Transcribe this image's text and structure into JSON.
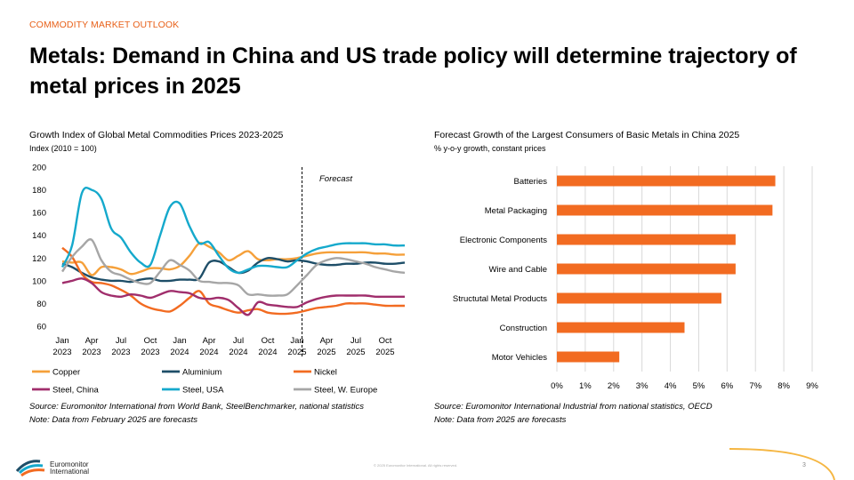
{
  "header": {
    "section_label": "COMMODITY MARKET OUTLOOK",
    "title": "Metals: Demand in China and US trade policy will determine trajectory of metal prices in 2025"
  },
  "left_chart": {
    "title": "Growth Index of Global Metal Commodities Prices 2023-2025",
    "subtitle": "Index (2010 = 100)",
    "forecast_label": "Forecast",
    "source": "Source: Euromonitor International from World Bank, SteelBenchmarker, national statistics",
    "note": "Note: Data from February 2025 are forecasts"
  },
  "right_chart": {
    "title": "Forecast Growth of the Largest Consumers of Basic Metals in China 2025",
    "subtitle": "% y-o-y growth, constant prices",
    "source": "Source: Euromonitor International Industrial from national statistics, OECD",
    "note": "Note: Data from 2025 are forecasts"
  },
  "footer": {
    "logo_line1": "Euromonitor",
    "logo_line2": "International",
    "copyright": "© 2025 Euromonitor International. All rights reserved.",
    "page_number": "3"
  },
  "chart_data": [
    {
      "type": "line",
      "x": [
        "Jan 2023",
        "Feb 2023",
        "Mar 2023",
        "Apr 2023",
        "May 2023",
        "Jun 2023",
        "Jul 2023",
        "Aug 2023",
        "Sep 2023",
        "Oct 2023",
        "Nov 2023",
        "Dec 2023",
        "Jan 2024",
        "Feb 2024",
        "Mar 2024",
        "Apr 2024",
        "May 2024",
        "Jun 2024",
        "Jul 2024",
        "Aug 2024",
        "Sep 2024",
        "Oct 2024",
        "Nov 2024",
        "Dec 2024",
        "Jan 2025",
        "Feb 2025",
        "Mar 2025",
        "Apr 2025",
        "May 2025",
        "Jun 2025",
        "Jul 2025",
        "Aug 2025",
        "Sep 2025",
        "Oct 2025",
        "Nov 2025",
        "Dec 2025"
      ],
      "x_tick_labels": [
        {
          "month": "Jan",
          "year": "2023",
          "index": 0
        },
        {
          "month": "Apr",
          "year": "2023",
          "index": 3
        },
        {
          "month": "Jul",
          "year": "2023",
          "index": 6
        },
        {
          "month": "Oct",
          "year": "2023",
          "index": 9
        },
        {
          "month": "Jan",
          "year": "2024",
          "index": 12
        },
        {
          "month": "Apr",
          "year": "2024",
          "index": 15
        },
        {
          "month": "Jul",
          "year": "2024",
          "index": 18
        },
        {
          "month": "Oct",
          "year": "2024",
          "index": 21
        },
        {
          "month": "Jan",
          "year": "2025",
          "index": 24
        },
        {
          "month": "Apr",
          "year": "2025",
          "index": 27
        },
        {
          "month": "Jul",
          "year": "2025",
          "index": 30
        },
        {
          "month": "Oct",
          "year": "2025",
          "index": 33
        }
      ],
      "y_ticks": [
        60,
        80,
        100,
        120,
        140,
        160,
        180,
        200
      ],
      "ylim": [
        60,
        200
      ],
      "forecast_start_index": 24.5,
      "series": [
        {
          "name": "Copper",
          "color": "#f5a03a",
          "values": [
            117,
            116,
            116,
            105,
            112,
            112,
            110,
            106,
            108,
            111,
            111,
            110,
            113,
            122,
            133,
            130,
            125,
            118,
            122,
            126,
            119,
            118,
            119,
            119,
            120,
            122,
            124,
            125,
            125,
            125,
            125,
            125,
            124,
            124,
            123,
            123
          ]
        },
        {
          "name": "Aluminium",
          "color": "#1e4e68",
          "values": [
            115,
            112,
            107,
            103,
            101,
            100,
            100,
            99,
            101,
            102,
            100,
            100,
            101,
            101,
            102,
            116,
            117,
            112,
            107,
            109,
            116,
            120,
            119,
            117,
            118,
            117,
            115,
            114,
            114,
            115,
            115,
            116,
            116,
            115,
            115,
            116
          ]
        },
        {
          "name": "Nickel",
          "color": "#f26b21",
          "values": [
            129,
            121,
            106,
            99,
            98,
            96,
            92,
            87,
            80,
            76,
            74,
            73,
            78,
            85,
            91,
            80,
            77,
            74,
            72,
            74,
            75,
            72,
            71,
            71,
            72,
            74,
            76,
            77,
            78,
            80,
            80,
            80,
            79,
            78,
            78,
            78
          ]
        },
        {
          "name": "Steel, China",
          "color": "#a02e6c",
          "values": [
            98,
            100,
            102,
            98,
            90,
            87,
            86,
            88,
            87,
            85,
            88,
            91,
            90,
            89,
            85,
            84,
            85,
            83,
            76,
            70,
            81,
            79,
            78,
            77,
            77,
            81,
            84,
            86,
            87,
            87,
            87,
            87,
            86,
            86,
            86,
            86
          ]
        },
        {
          "name": "Steel, USA",
          "color": "#15a9cc",
          "values": [
            112,
            131,
            177,
            180,
            172,
            146,
            138,
            125,
            116,
            114,
            140,
            165,
            168,
            148,
            133,
            134,
            122,
            111,
            107,
            110,
            113,
            113,
            112,
            112,
            118,
            124,
            128,
            130,
            132,
            133,
            133,
            133,
            132,
            132,
            131,
            131
          ]
        },
        {
          "name": "Steel, W. Europe",
          "color": "#a6a6a6",
          "values": [
            108,
            121,
            130,
            136,
            118,
            108,
            105,
            101,
            98,
            98,
            108,
            118,
            114,
            109,
            100,
            99,
            98,
            98,
            96,
            88,
            88,
            87,
            87,
            88,
            96,
            105,
            114,
            118,
            120,
            119,
            117,
            115,
            112,
            110,
            108,
            107
          ]
        }
      ]
    },
    {
      "type": "bar",
      "orientation": "horizontal",
      "categories": [
        "Batteries",
        "Metal Packaging",
        "Electronic Components",
        "Wire and Cable",
        "Structutal Metal Products",
        "Construction",
        "Motor Vehicles"
      ],
      "values": [
        7.7,
        7.6,
        6.3,
        6.3,
        5.8,
        4.5,
        2.2
      ],
      "x_ticks": [
        "0%",
        "1%",
        "2%",
        "3%",
        "4%",
        "5%",
        "6%",
        "7%",
        "8%",
        "9%"
      ],
      "xlim": [
        0,
        9
      ],
      "bar_color": "#f26b21"
    }
  ]
}
